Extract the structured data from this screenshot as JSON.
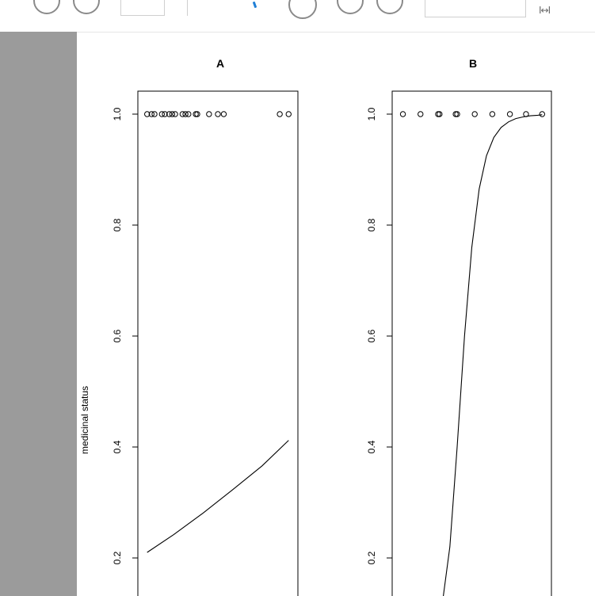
{
  "toolbar": {
    "icons": [
      "circle-button-icon",
      "circle-button-icon",
      "blue-tool-icon",
      "circle-button-icon",
      "circle-button-icon",
      "circle-button-icon"
    ],
    "fit_symbol": "I↔I"
  },
  "colors": {
    "sidepanel": "#9b9b9b",
    "toolbar_accent": "#1f7fd6",
    "axis": "#000000"
  },
  "chart_data": [
    {
      "type": "line",
      "title": "A",
      "ylabel": "medicinal status",
      "xlabel": "",
      "ylim": [
        0.16,
        1.04
      ],
      "yticks": [
        0.2,
        0.4,
        0.6,
        0.8,
        1.0
      ],
      "ytick_labels": [
        "0.2",
        "0.4",
        "0.6",
        "0.8",
        "1.0"
      ],
      "xlim": [
        0,
        1
      ],
      "points": {
        "x": [
          0.02,
          0.05,
          0.07,
          0.12,
          0.14,
          0.17,
          0.19,
          0.21,
          0.26,
          0.28,
          0.3,
          0.35,
          0.36,
          0.44,
          0.5,
          0.54,
          0.92,
          0.98
        ],
        "y": [
          1,
          1,
          1,
          1,
          1,
          1,
          1,
          1,
          1,
          1,
          1,
          1,
          1,
          1,
          1,
          1,
          1,
          1
        ]
      },
      "curve": {
        "x": [
          0.02,
          0.2,
          0.4,
          0.6,
          0.8,
          0.98
        ],
        "y": [
          0.21,
          0.242,
          0.281,
          0.323,
          0.366,
          0.412
        ]
      },
      "grid": false
    },
    {
      "type": "line",
      "title": "B",
      "ylabel": "",
      "xlabel": "",
      "ylim": [
        0.16,
        1.04
      ],
      "yticks": [
        0.2,
        0.4,
        0.6,
        0.8,
        1.0
      ],
      "ytick_labels": [
        "0.2",
        "0.4",
        "0.6",
        "0.8",
        "1.0"
      ],
      "xlim": [
        0,
        1
      ],
      "points": {
        "x": [
          0.03,
          0.15,
          0.27,
          0.28,
          0.39,
          0.4,
          0.52,
          0.64,
          0.76,
          0.87,
          0.98
        ],
        "y": [
          1,
          1,
          1,
          1,
          1,
          1,
          1,
          1,
          1,
          1,
          1
        ]
      },
      "curve": {
        "x": [
          0.3,
          0.35,
          0.4,
          0.45,
          0.5,
          0.55,
          0.6,
          0.65,
          0.7,
          0.75,
          0.8,
          0.85,
          0.9,
          0.95,
          0.98
        ],
        "y": [
          0.12,
          0.22,
          0.4,
          0.6,
          0.76,
          0.865,
          0.925,
          0.958,
          0.976,
          0.986,
          0.992,
          0.995,
          0.997,
          0.998,
          0.999
        ]
      },
      "grid": false
    }
  ]
}
